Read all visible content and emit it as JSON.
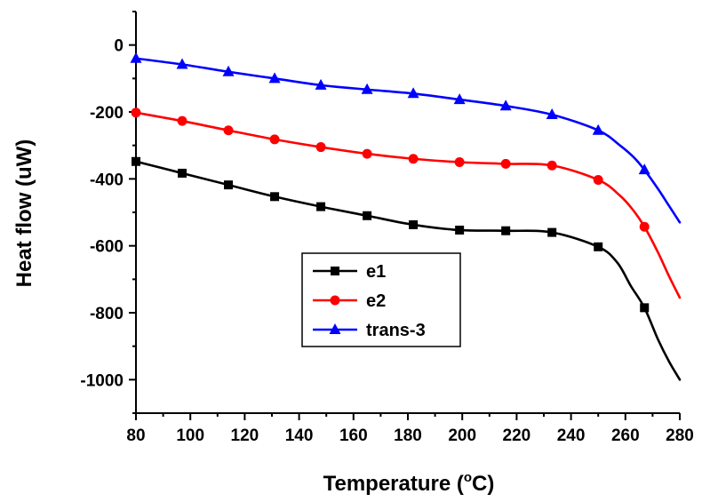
{
  "chart_data": {
    "type": "line",
    "title": "",
    "xlabel": "Temperature (",
    "xlabel_unit_sup": "o",
    "xlabel_unit": "C)",
    "ylabel": "Heat flow (uW)",
    "xlim": [
      80,
      280
    ],
    "ylim": [
      -1100,
      100
    ],
    "xticks": [
      80,
      100,
      120,
      140,
      160,
      180,
      200,
      220,
      240,
      260,
      280
    ],
    "yticks": [
      0,
      -200,
      -400,
      -600,
      -800,
      -1000
    ],
    "grid": false,
    "legend_position": "bottom-center",
    "series": [
      {
        "name": "e1",
        "color": "#000000",
        "marker": "square",
        "x": [
          80,
          97,
          114,
          131,
          148,
          165,
          182,
          199,
          216,
          233,
          250,
          257,
          262,
          267,
          272,
          276,
          280
        ],
        "y": [
          -348,
          -383,
          -418,
          -453,
          -483,
          -510,
          -537,
          -553,
          -555,
          -560,
          -603,
          -650,
          -720,
          -785,
          -880,
          -945,
          -1000
        ],
        "marker_x": [
          80,
          97,
          114,
          131,
          148,
          165,
          182,
          199,
          216,
          233,
          250,
          267
        ]
      },
      {
        "name": "e2",
        "color": "#ff0000",
        "marker": "circle",
        "x": [
          80,
          97,
          114,
          131,
          148,
          165,
          182,
          199,
          216,
          233,
          250,
          258,
          263,
          267,
          272,
          276,
          280
        ],
        "y": [
          -202,
          -227,
          -255,
          -282,
          -305,
          -325,
          -340,
          -350,
          -355,
          -360,
          -403,
          -450,
          -495,
          -543,
          -620,
          -690,
          -755
        ],
        "marker_x": [
          80,
          97,
          114,
          131,
          148,
          165,
          182,
          199,
          216,
          233,
          250,
          267
        ]
      },
      {
        "name": "trans-3",
        "color": "#0000ff",
        "marker": "triangle",
        "x": [
          80,
          97,
          114,
          131,
          148,
          165,
          182,
          199,
          216,
          233,
          250,
          258,
          263,
          267,
          272,
          276,
          280
        ],
        "y": [
          -40,
          -58,
          -80,
          -100,
          -120,
          -133,
          -145,
          -163,
          -182,
          -208,
          -255,
          -300,
          -335,
          -373,
          -430,
          -480,
          -530
        ],
        "marker_x": [
          80,
          97,
          114,
          131,
          148,
          165,
          182,
          199,
          216,
          233,
          250,
          267
        ]
      }
    ]
  }
}
